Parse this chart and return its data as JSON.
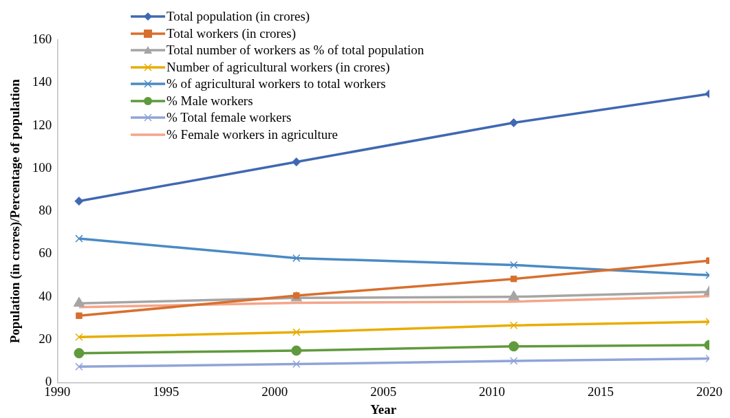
{
  "chart_data": {
    "type": "line",
    "xlabel": "Year",
    "ylabel": "Population (in crores)/Percentage of population",
    "x": [
      1991,
      2001,
      2011,
      2020
    ],
    "xlim": [
      1990,
      2020
    ],
    "xticks": [
      1990,
      1995,
      2000,
      2005,
      2010,
      2015,
      2020
    ],
    "ylim": [
      0,
      160
    ],
    "yticks": [
      0,
      20,
      40,
      60,
      80,
      100,
      120,
      140,
      160
    ],
    "grid": false,
    "legend": "top left",
    "series": [
      {
        "name": "Total population (in crores)",
        "color": "#4068b2",
        "marker": "diamond",
        "values": [
          84.7,
          103.0,
          121.3,
          134.8
        ]
      },
      {
        "name": "Total workers (in crores)",
        "color": "#d86f2e",
        "marker": "square",
        "values": [
          31.2,
          40.6,
          48.4,
          56.9
        ]
      },
      {
        "name": "Total number of workers as % of total population",
        "color": "#a5a5a5",
        "marker": "triangle",
        "values": [
          37.0,
          39.5,
          40.0,
          42.3
        ]
      },
      {
        "name": "Number of agricultural workers (in crores)",
        "color": "#e8ad00",
        "marker": "cross",
        "values": [
          21.2,
          23.5,
          26.7,
          28.4
        ]
      },
      {
        "name": "% of agricultural workers to total workers",
        "color": "#4a8ac4",
        "marker": "cross",
        "values": [
          67.2,
          58.1,
          54.9,
          50.1
        ]
      },
      {
        "name": "% Male workers",
        "color": "#5f9a3c",
        "marker": "circle",
        "values": [
          13.7,
          14.9,
          16.9,
          17.5
        ]
      },
      {
        "name": "% Total female workers",
        "color": "#8fa4d8",
        "marker": "cross",
        "values": [
          7.4,
          8.6,
          10.1,
          11.2
        ]
      },
      {
        "name": "% Female workers in agriculture",
        "color": "#f4a58a",
        "marker": "none",
        "values": [
          35.2,
          37.2,
          37.8,
          40.3
        ]
      }
    ]
  }
}
